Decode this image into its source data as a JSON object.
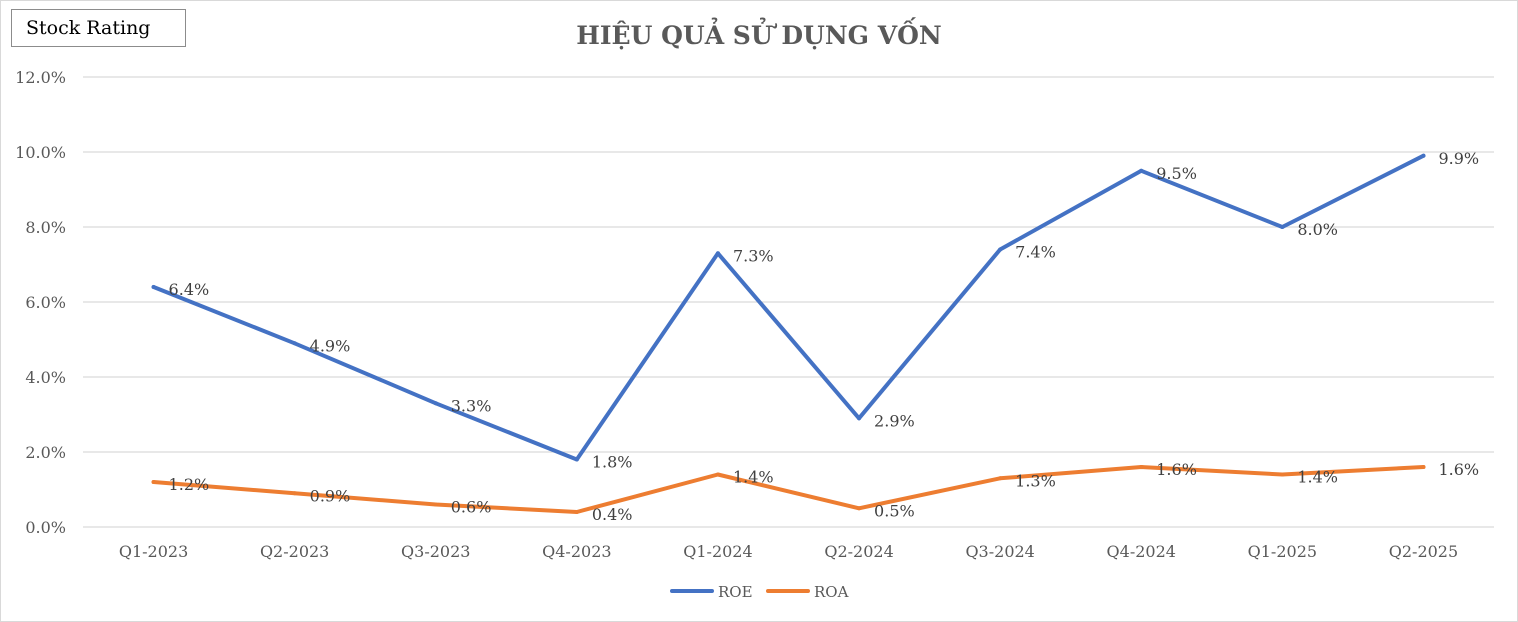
{
  "badge": {
    "label": "Stock Rating"
  },
  "chart_data": {
    "type": "line",
    "title": "HIỆU QUẢ SỬ DỤNG VỐN",
    "xlabel": "",
    "ylabel": "",
    "ylim": [
      0,
      12
    ],
    "yticks": [
      "0.0%",
      "2.0%",
      "4.0%",
      "6.0%",
      "8.0%",
      "10.0%",
      "12.0%"
    ],
    "grid": true,
    "legend_position": "bottom",
    "categories": [
      "Q1-2023",
      "Q2-2023",
      "Q3-2023",
      "Q4-2023",
      "Q1-2024",
      "Q2-2024",
      "Q3-2024",
      "Q4-2024",
      "Q1-2025",
      "Q2-2025"
    ],
    "series": [
      {
        "name": "ROE",
        "color": "#4472c4",
        "values": [
          6.4,
          4.9,
          3.3,
          1.8,
          7.3,
          2.9,
          7.4,
          9.5,
          8.0,
          9.9
        ],
        "labels": [
          "6.4%",
          "4.9%",
          "3.3%",
          "1.8%",
          "7.3%",
          "2.9%",
          "7.4%",
          "9.5%",
          "8.0%",
          "9.9%"
        ]
      },
      {
        "name": "ROA",
        "color": "#ed7d31",
        "values": [
          1.2,
          0.9,
          0.6,
          0.4,
          1.4,
          0.5,
          1.3,
          1.6,
          1.4,
          1.6
        ],
        "labels": [
          "1.2%",
          "0.9%",
          "0.6%",
          "0.4%",
          "1.4%",
          "0.5%",
          "1.3%",
          "1.6%",
          "1.4%",
          "1.6%"
        ]
      }
    ]
  }
}
